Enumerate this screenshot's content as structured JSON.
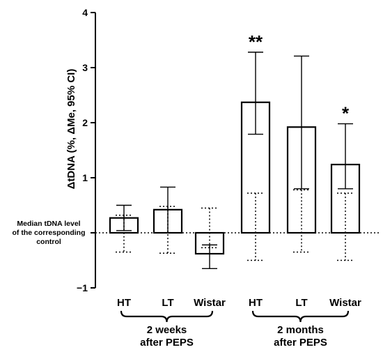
{
  "chart_data": {
    "type": "bar",
    "ylabel": "ΔtDNA (%, ΔMe, 95% CI)",
    "ylim": [
      -1,
      4
    ],
    "yticks": [
      4,
      3,
      2,
      1,
      0,
      -1
    ],
    "ytick_labels": [
      "4",
      "3",
      "2",
      "1",
      "",
      "−1"
    ],
    "grid": false,
    "categories": [
      "HT",
      "LT",
      "Wistar",
      "HT",
      "LT",
      "Wistar"
    ],
    "values": [
      0.27,
      0.42,
      -0.38,
      2.37,
      1.92,
      1.24
    ],
    "ci": [
      [
        0.04,
        0.5
      ],
      [
        0.0,
        0.83
      ],
      [
        -0.65,
        -0.22
      ],
      [
        1.79,
        3.28
      ],
      [
        0.8,
        3.21
      ],
      [
        0.8,
        1.98
      ]
    ],
    "control_range": [
      [
        -0.35,
        0.32
      ],
      [
        -0.37,
        0.48
      ],
      [
        -0.27,
        0.45
      ],
      [
        -0.5,
        0.72
      ],
      [
        -0.35,
        0.78
      ],
      [
        -0.5,
        0.72
      ]
    ],
    "significance": [
      "",
      "",
      "",
      "**",
      "",
      "*"
    ],
    "groups": [
      {
        "label_lines": [
          "2 weeks",
          "after PEPS"
        ],
        "members": [
          0,
          1,
          2
        ]
      },
      {
        "label_lines": [
          "2 months",
          "after PEPS"
        ],
        "members": [
          3,
          4,
          5
        ]
      }
    ],
    "reference_line": {
      "y": 0,
      "label_lines": [
        "Median tDNA level",
        "of the corresponding",
        "control"
      ]
    }
  }
}
